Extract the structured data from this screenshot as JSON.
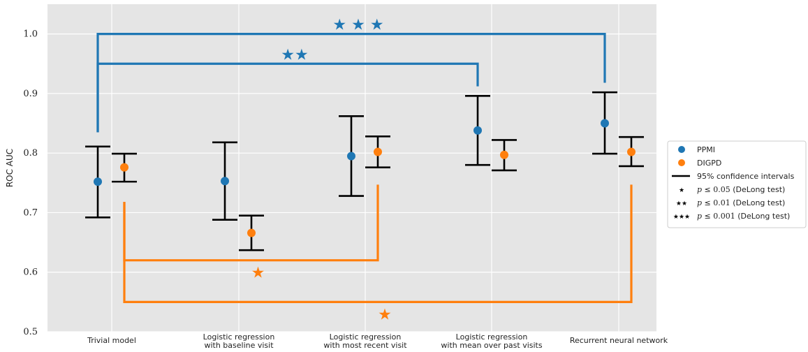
{
  "chart_data": {
    "type": "errorbar-scatter",
    "ylabel": "ROC AUC",
    "xlabel": "",
    "ylim": [
      0.5,
      1.05
    ],
    "yticks": [
      "0.5",
      "0.6",
      "0.7",
      "0.8",
      "0.9",
      "1.0"
    ],
    "grid": true,
    "legend_placement": "right",
    "categories": [
      {
        "line1": "Trivial model",
        "line2": ""
      },
      {
        "line1": "Logistic regression",
        "line2": "with baseline visit"
      },
      {
        "line1": "Logistic regression",
        "line2": "with most recent visit"
      },
      {
        "line1": "Logistic regression",
        "line2": "with mean over past visits"
      },
      {
        "line1": "Recurrent neural network",
        "line2": ""
      }
    ],
    "series": [
      {
        "name": "PPMI",
        "color": "#1f77b4",
        "values": [
          0.752,
          0.753,
          0.795,
          0.838,
          0.85
        ],
        "lower": [
          0.692,
          0.688,
          0.728,
          0.78,
          0.799
        ],
        "upper": [
          0.811,
          0.818,
          0.862,
          0.896,
          0.902
        ]
      },
      {
        "name": "DIGPD",
        "color": "#ff7f0e",
        "values": [
          0.776,
          0.666,
          0.802,
          0.797,
          0.802
        ],
        "lower": [
          0.752,
          0.637,
          0.776,
          0.771,
          0.778
        ],
        "upper": [
          0.799,
          0.695,
          0.828,
          0.822,
          0.827
        ]
      }
    ],
    "significance": [
      {
        "series": "PPMI",
        "from": 0,
        "to": 4,
        "level": 1.0,
        "stars": "★ ★ ★",
        "drop_from": 0.835,
        "drop_to": 0.918
      },
      {
        "series": "PPMI",
        "from": 0,
        "to": 3,
        "level": 0.95,
        "stars": "★★",
        "drop_from": 0.835,
        "drop_to": 0.912
      },
      {
        "series": "DIGPD",
        "from": 0,
        "to": 2,
        "level": 0.62,
        "stars": "★",
        "drop_from": 0.718,
        "drop_to": 0.747
      },
      {
        "series": "DIGPD",
        "from": 0,
        "to": 4,
        "level": 0.55,
        "stars": "★",
        "drop_from": 0.718,
        "drop_to": 0.747
      }
    ],
    "legend": [
      {
        "kind": "marker",
        "label": "PPMI",
        "color": "#1f77b4"
      },
      {
        "kind": "marker",
        "label": "DIGPD",
        "color": "#ff7f0e"
      },
      {
        "kind": "line",
        "label": "95% confidence intervals"
      },
      {
        "kind": "stars",
        "symbol": "★",
        "pre": "p",
        "op": " ≤ ",
        "val": "0.05",
        "post": " (DeLong test)"
      },
      {
        "kind": "stars",
        "symbol": "★★",
        "pre": "p",
        "op": " ≤ ",
        "val": "0.01",
        "post": " (DeLong test)"
      },
      {
        "kind": "stars",
        "symbol": "★★★",
        "pre": "p",
        "op": " ≤ ",
        "val": "0.001",
        "post": " (DeLong test)"
      }
    ]
  }
}
